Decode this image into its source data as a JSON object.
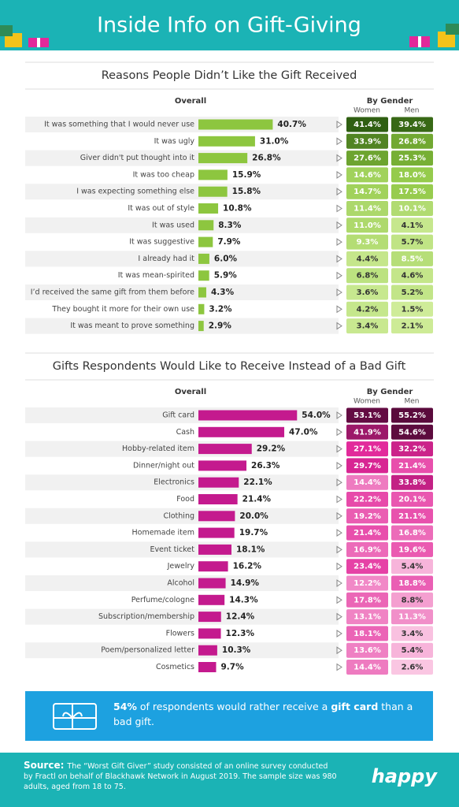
{
  "title": "Inside Info on Gift-Giving",
  "chart_data": [
    {
      "type": "bar",
      "title": "Reasons People Didn’t Like the Gift Received",
      "group_label": "By Gender",
      "heat_colors": [
        "#d4efa0",
        "#8cc63f",
        "#2f5f12"
      ],
      "categories": [
        "It was something that I would never use",
        "It was ugly",
        "Giver didn't put thought into it",
        "It was too cheap",
        "I was expecting something else",
        "It was out of style",
        "It was used",
        "It was suggestive",
        "I already had it",
        "It was mean-spirited",
        "I’d received the same gift from them before",
        "They bought it more for their own use",
        "It was meant to prove something"
      ],
      "series": [
        {
          "name": "Overall",
          "color": "#8dc63f",
          "values": [
            40.7,
            31,
            26.8,
            15.9,
            15.8,
            10.8,
            8.3,
            7.9,
            6,
            5.9,
            4.3,
            3.2,
            2.9
          ],
          "value_labels": [
            "40.7%",
            "31.0%",
            "26.8%",
            "15.9%",
            "15.8%",
            "10.8%",
            "8.3%",
            "7.9%",
            "6.0%",
            "5.9%",
            "4.3%",
            "3.2%",
            "2.9%"
          ]
        },
        {
          "name": "Women",
          "values": [
            41.4,
            33.9,
            27.6,
            14.6,
            14.7,
            11.4,
            11,
            9.3,
            4.4,
            6.8,
            3.6,
            4.2,
            3.4
          ],
          "value_labels": [
            "41.4%",
            "33.9%",
            "27.6%",
            "14.6%",
            "14.7%",
            "11.4%",
            "11.0%",
            "9.3%",
            "4.4%",
            "6.8%",
            "3.6%",
            "4.2%",
            "3.4%"
          ]
        },
        {
          "name": "Men",
          "values": [
            39.4,
            26.8,
            25.3,
            18,
            17.5,
            10.1,
            4.1,
            5.7,
            8.5,
            4.6,
            5.2,
            1.5,
            2.1
          ],
          "value_labels": [
            "39.4%",
            "26.8%",
            "25.3%",
            "18.0%",
            "17.5%",
            "10.1%",
            "4.1%",
            "5.7%",
            "8.5%",
            "4.6%",
            "5.2%",
            "1.5%",
            "2.1%"
          ]
        }
      ]
    },
    {
      "type": "bar",
      "title": "Gifts Respondents Would Like to Receive Instead of a Bad Gift",
      "group_label": "By Gender",
      "heat_colors": [
        "#fcd6ea",
        "#e2289a",
        "#5a0a3c"
      ],
      "categories": [
        "Gift card",
        "Cash",
        "Hobby-related item",
        "Dinner/night out",
        "Electronics",
        "Food",
        "Clothing",
        "Homemade item",
        "Event ticket",
        "Jewelry",
        "Alcohol",
        "Perfume/cologne",
        "Subscription/membership",
        "Flowers",
        "Poem/personalized letter",
        "Cosmetics"
      ],
      "series": [
        {
          "name": "Overall",
          "color": "#c41a8e",
          "values": [
            54,
            47,
            29.2,
            26.3,
            22.1,
            21.4,
            20,
            19.7,
            18.1,
            16.2,
            14.9,
            14.3,
            12.4,
            12.3,
            10.3,
            9.7
          ],
          "value_labels": [
            "54.0%",
            "47.0%",
            "29.2%",
            "26.3%",
            "22.1%",
            "21.4%",
            "20.0%",
            "19.7%",
            "18.1%",
            "16.2%",
            "14.9%",
            "14.3%",
            "12.4%",
            "12.3%",
            "10.3%",
            "9.7%"
          ]
        },
        {
          "name": "Women",
          "values": [
            53.1,
            41.9,
            27.1,
            29.7,
            14.4,
            22.2,
            19.2,
            21.4,
            16.9,
            23.4,
            12.2,
            17.8,
            13.1,
            18.1,
            13.6,
            14.4
          ],
          "value_labels": [
            "53.1%",
            "41.9%",
            "27.1%",
            "29.7%",
            "14.4%",
            "22.2%",
            "19.2%",
            "21.4%",
            "16.9%",
            "23.4%",
            "12.2%",
            "17.8%",
            "13.1%",
            "18.1%",
            "13.6%",
            "14.4%"
          ]
        },
        {
          "name": "Men",
          "values": [
            55.2,
            54.6,
            32.2,
            21.4,
            33.8,
            20.1,
            21.1,
            16.8,
            19.6,
            5.4,
            18.8,
            8.8,
            11.3,
            3.4,
            5.4,
            2.6
          ],
          "value_labels": [
            "55.2%",
            "54.6%",
            "32.2%",
            "21.4%",
            "33.8%",
            "20.1%",
            "21.1%",
            "16.8%",
            "19.6%",
            "5.4%",
            "18.8%",
            "8.8%",
            "11.3%",
            "3.4%",
            "5.4%",
            "2.6%"
          ]
        }
      ]
    }
  ],
  "callout": {
    "parts": [
      "54%",
      " of respondents would rather receive a ",
      "gift card",
      " than a bad gift."
    ]
  },
  "source": {
    "label": "Source:",
    "text": "The “Worst Gift Giver” study consisted of an online survey conducted by Fractl on behalf of Blackhawk Network in August 2019. The sample size was 980 adults, aged from 18 to 75."
  },
  "logo": "happy"
}
